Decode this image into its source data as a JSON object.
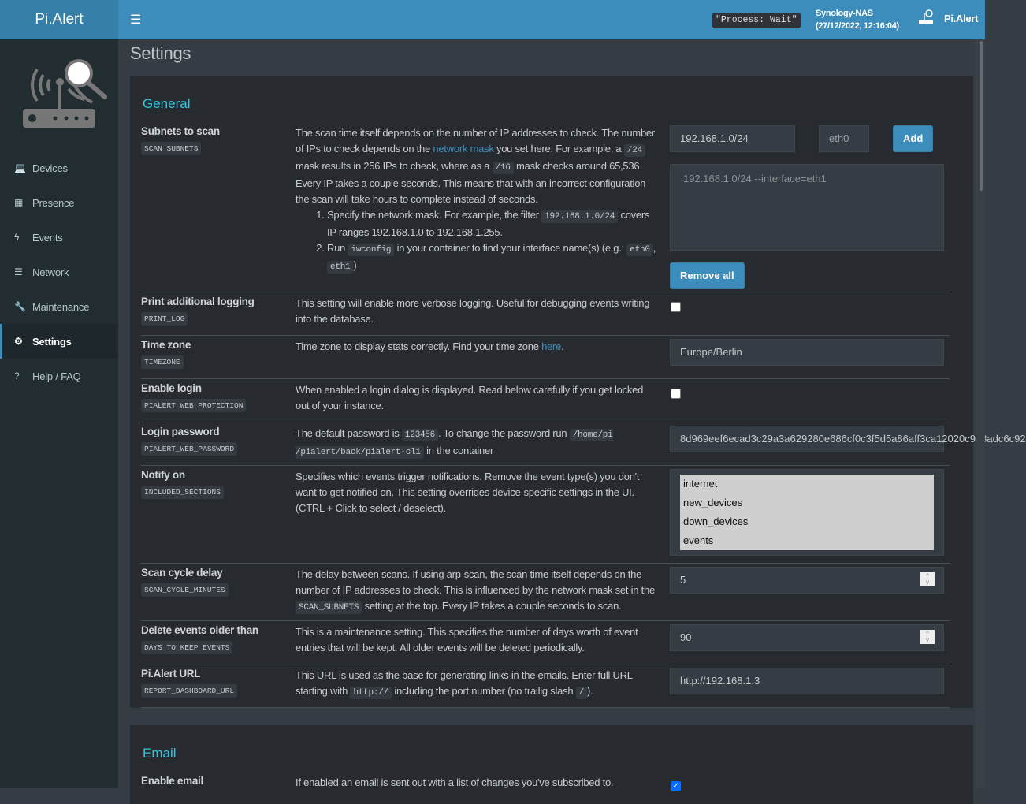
{
  "header": {
    "brand": "Pi.Alert",
    "process": "\"Process: Wait\"",
    "host": "Synology-NAS",
    "datetime": "(27/12/2022, 12:16:04)",
    "user": "Pi.Alert"
  },
  "sidebar": {
    "items": [
      {
        "label": "Devices",
        "icon": "laptop-icon",
        "glyph": "💻"
      },
      {
        "label": "Presence",
        "icon": "calendar-icon",
        "glyph": "▦"
      },
      {
        "label": "Events",
        "icon": "bolt-icon",
        "glyph": "ϟ"
      },
      {
        "label": "Network",
        "icon": "server-icon",
        "glyph": "☰"
      },
      {
        "label": "Maintenance",
        "icon": "wrench-icon",
        "glyph": "🔧"
      },
      {
        "label": "Settings",
        "icon": "gear-icon",
        "glyph": "⚙",
        "active": true
      },
      {
        "label": "Help / FAQ",
        "icon": "question-icon",
        "glyph": "?"
      }
    ]
  },
  "page": {
    "title": "Settings"
  },
  "general": {
    "title": "General",
    "settings": [
      {
        "label": "Subnets to scan",
        "key": "SCAN_SUBNETS",
        "desc": [
          {
            "t": "The scan time itself depends on the number of IP addresses to check. The number of IPs to check depends on the "
          },
          {
            "t": "network mask",
            "link": true
          },
          {
            "t": " you set here. For example, a "
          },
          {
            "t": "/24",
            "code": true
          },
          {
            "t": " mask results in 256 IPs to check, where as a "
          },
          {
            "t": "/16",
            "code": true
          },
          {
            "t": " mask checks around 65,536. Every IP takes a couple seconds. This means that with an incorrect configuration the scan will take hours to complete instead of seconds."
          }
        ],
        "list": [
          [
            {
              "t": "Specify the network mask. For example, the filter "
            },
            {
              "t": "192.168.1.0/24",
              "code": true
            },
            {
              "t": " covers IP ranges 192.168.1.0 to 192.168.1.255."
            }
          ],
          [
            {
              "t": "Run "
            },
            {
              "t": "iwconfig",
              "code": true
            },
            {
              "t": " in your container to find your interface name(s) (e.g.: "
            },
            {
              "t": "eth0",
              "code": true
            },
            {
              "t": ", "
            },
            {
              "t": "eth1",
              "code": true
            },
            {
              "t": ")"
            }
          ]
        ],
        "subnet_input": "192.168.1.0/24",
        "interface_input": "eth0",
        "add_label": "Add",
        "list_value": "192.168.1.0/24 --interface=eth1",
        "remove_label": "Remove all"
      },
      {
        "label": "Print additional logging",
        "key": "PRINT_LOG",
        "desc": [
          {
            "t": "This setting will enable more verbose logging. Useful for debugging events writing into the database."
          }
        ],
        "checked": false
      },
      {
        "label": "Time zone",
        "key": "TIMEZONE",
        "desc": [
          {
            "t": "Time zone to display stats correctly. Find your time zone "
          },
          {
            "t": "here",
            "link": true
          },
          {
            "t": "."
          }
        ],
        "value": "Europe/Berlin"
      },
      {
        "label": "Enable login",
        "key": "PIALERT_WEB_PROTECTION",
        "desc": [
          {
            "t": "When enabled a login dialog is displayed. Read below carefully if you get locked out of your instance."
          }
        ],
        "checked": false
      },
      {
        "label": "Login password",
        "key": "PIALERT_WEB_PASSWORD",
        "desc": [
          {
            "t": "The default password is "
          },
          {
            "t": "123456",
            "code": true
          },
          {
            "t": ". To change the password run "
          },
          {
            "t": "/home/pi /pialert/back/pialert-cli",
            "code": true
          },
          {
            "t": " in the container"
          }
        ],
        "value": "8d969eef6ecad3c29a3a629280e686cf0c3f5d5a86aff3ca12020c923adc6c92"
      },
      {
        "label": "Notify on",
        "key": "INCLUDED_SECTIONS",
        "desc": [
          {
            "t": "Specifies which events trigger notifications. Remove the event type(s) you don't want to get notified on. This setting overrides device-specific settings in the UI. (CTRL + Click to select / deselect)."
          }
        ],
        "options": [
          "internet",
          "new_devices",
          "down_devices",
          "events"
        ]
      },
      {
        "label": "Scan cycle delay",
        "key": "SCAN_CYCLE_MINUTES",
        "desc": [
          {
            "t": "The delay between scans. If using arp-scan, the scan time itself depends on the number of IP addresses to check. This is influenced by the network mask set in the "
          },
          {
            "t": "SCAN_SUBNETS",
            "code": true
          },
          {
            "t": " setting at the top. Every IP takes a couple seconds to scan."
          }
        ],
        "value": "5"
      },
      {
        "label": "Delete events older than",
        "key": "DAYS_TO_KEEP_EVENTS",
        "desc": [
          {
            "t": "This is a maintenance setting. This specifies the number of days worth of event entries that will be kept. All older events will be deleted periodically."
          }
        ],
        "value": "90"
      },
      {
        "label": "Pi.Alert URL",
        "key": "REPORT_DASHBOARD_URL",
        "desc": [
          {
            "t": "This URL is used as the base for generating links in the emails. Enter full URL starting with "
          },
          {
            "t": "http://",
            "code": true
          },
          {
            "t": " including the port number (no trailig slash "
          },
          {
            "t": "/",
            "code": true
          },
          {
            "t": ")."
          }
        ],
        "value": "http://192.168.1.3"
      }
    ]
  },
  "email": {
    "title": "Email",
    "settings": [
      {
        "label": "Enable email",
        "desc": [
          {
            "t": "If enabled an email is sent out with a list of changes you've subscribed to."
          }
        ],
        "checked": true
      }
    ]
  }
}
